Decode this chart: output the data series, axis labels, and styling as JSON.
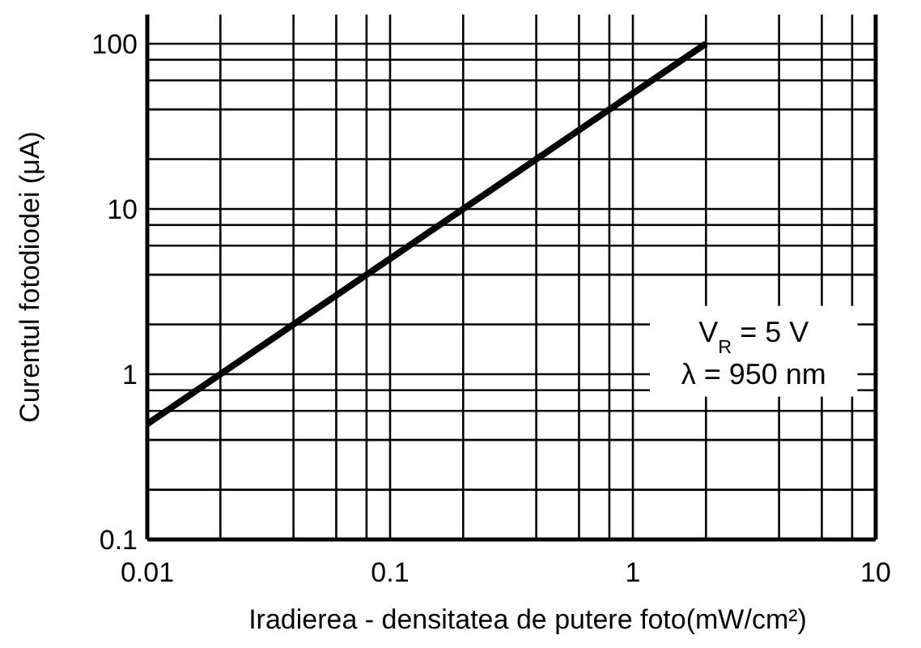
{
  "chart_data": {
    "type": "line",
    "xlabel": "Iradierea - densitatea de putere foto(mW/cm²)",
    "ylabel": "Curentul fotodiodei  (μA)",
    "log": "xy",
    "grid": true,
    "marker": "none",
    "line_style": "solid",
    "xlim": [
      0.01,
      10
    ],
    "ylim": [
      0.1,
      150
    ],
    "xticks": [
      0.01,
      {
        "value": 0.02,
        "label": null
      },
      {
        "value": 0.04,
        "label": null
      },
      {
        "value": 0.06,
        "label": null
      },
      {
        "value": 0.08,
        "label": null
      },
      0.1,
      {
        "value": 0.2,
        "label": null
      },
      {
        "value": 0.4,
        "label": null
      },
      {
        "value": 0.6,
        "label": null
      },
      {
        "value": 0.8,
        "label": null
      },
      1,
      {
        "value": 2,
        "label": null
      },
      {
        "value": 4,
        "label": null
      },
      {
        "value": 6,
        "label": null
      },
      {
        "value": 8,
        "label": null
      },
      10
    ],
    "yticks": [
      0.1,
      {
        "value": 0.2,
        "label": null
      },
      {
        "value": 0.4,
        "label": null
      },
      {
        "value": 0.6,
        "label": null
      },
      {
        "value": 0.8,
        "label": null
      },
      1,
      {
        "value": 2,
        "label": null
      },
      {
        "value": 4,
        "label": null
      },
      {
        "value": 6,
        "label": null
      },
      {
        "value": 8,
        "label": null
      },
      10,
      {
        "value": 20,
        "label": null
      },
      {
        "value": 40,
        "label": null
      },
      {
        "value": 60,
        "label": null
      },
      {
        "value": 80,
        "label": null
      },
      100
    ],
    "annotations": [
      "V$_{R}$ = 5 V",
      "λ = 950 nm"
    ],
    "series": [
      {
        "color": "#000000",
        "x": [
          0.01,
          2
        ],
        "values": [
          0.5,
          100
        ]
      }
    ]
  }
}
